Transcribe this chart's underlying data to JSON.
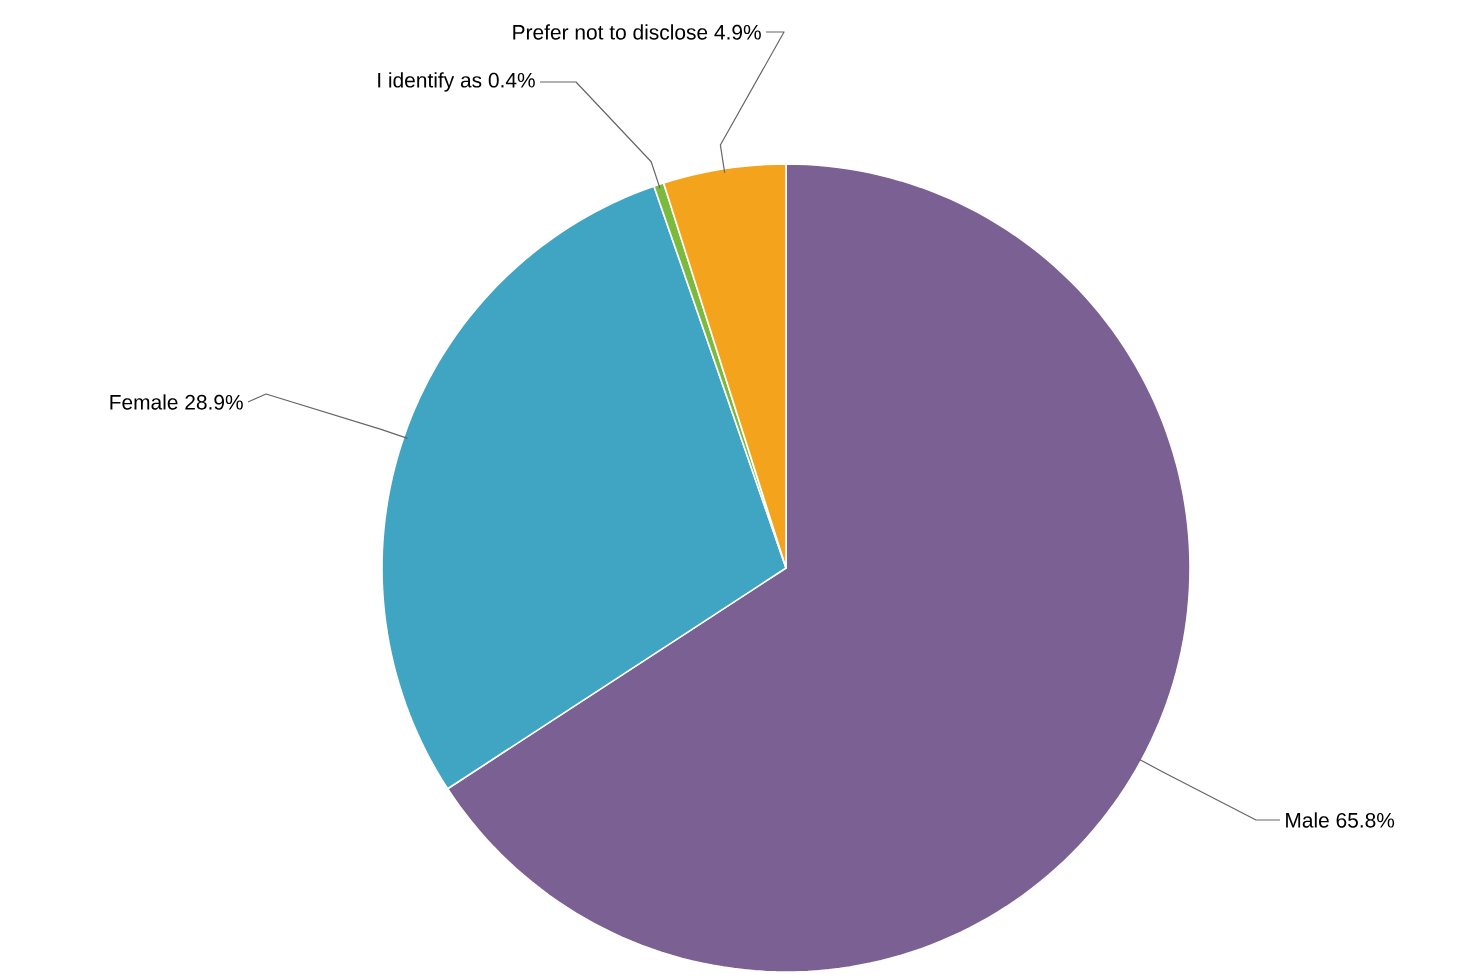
{
  "chart_data": {
    "type": "pie",
    "categories": [
      "Male",
      "Female",
      "I identify as",
      "Prefer not to disclose"
    ],
    "values": [
      65.8,
      28.9,
      0.4,
      4.9
    ],
    "value_labels": [
      "65.8%",
      "28.9%",
      "0.4%",
      "4.9%"
    ],
    "colors": [
      "#7b6193",
      "#40a4c3",
      "#7cba3d",
      "#f4a41c"
    ]
  }
}
